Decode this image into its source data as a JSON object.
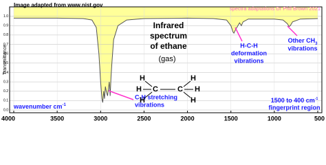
{
  "chart_data": {
    "type": "line",
    "title_lines": [
      "Infrared",
      "spectrum",
      "of ethane"
    ],
    "subtitle": "(gas)",
    "source": "Image adapted from www.nist.gov",
    "credit": "spectra adaptations Dr Phil Brown 2021",
    "y_label": "Transmittance",
    "x_label": {
      "text": "wavenumber  cm",
      "superscript": "-1"
    },
    "fingerprint_note": {
      "line1": "1500 to 400 cm",
      "superscript": "-1",
      "line2": "fingerprint region"
    },
    "annotations": [
      {
        "lines": [
          "C-H stretching",
          "vibrations"
        ],
        "color": "#1a1aff"
      },
      {
        "lines": [
          "H-C-H",
          "deformation",
          "vibrations"
        ],
        "color": "#1a1aff"
      },
      {
        "lines": [
          "Other CH",
          "vibrations"
        ],
        "subscript": "3",
        "color": "#1a1aff"
      }
    ],
    "molecule_atoms": [
      "H",
      "H",
      "H",
      "C",
      "C",
      "H",
      "H",
      "H"
    ],
    "x": [
      4000,
      3800,
      3500,
      3200,
      3100,
      3050,
      3020,
      3000,
      2985,
      2975,
      2965,
      2955,
      2945,
      2935,
      2920,
      2900,
      2890,
      2880,
      2870,
      2850,
      2800,
      2700,
      2500,
      2000,
      1700,
      1550,
      1500,
      1475,
      1465,
      1450,
      1400,
      1380,
      1360,
      1300,
      1000,
      900,
      850,
      830,
      815,
      790,
      700,
      500
    ],
    "series": [
      {
        "name": "ethane",
        "color": "#555555",
        "fill": "#ffff99",
        "values": [
          0.98,
          0.98,
          0.98,
          0.975,
          0.96,
          0.88,
          0.6,
          0.3,
          0.12,
          0.08,
          0.2,
          0.12,
          0.25,
          0.2,
          0.15,
          0.3,
          0.15,
          0.35,
          0.5,
          0.75,
          0.9,
          0.96,
          0.975,
          0.98,
          0.975,
          0.96,
          0.9,
          0.83,
          0.82,
          0.85,
          0.93,
          0.9,
          0.94,
          0.97,
          0.97,
          0.96,
          0.92,
          0.89,
          0.9,
          0.94,
          0.97,
          0.975
        ]
      }
    ],
    "xlim": [
      4000,
      500
    ],
    "ylim": [
      0,
      1.1
    ],
    "xticks": [
      4000,
      3500,
      3000,
      2500,
      2000,
      1500,
      1000,
      500
    ],
    "yticks": [
      {
        "value": 0,
        "label": "0.0"
      },
      0.1,
      0.2,
      0.3,
      0.4,
      0.5,
      0.6,
      0.7,
      0.8,
      0.9,
      {
        "value": 1,
        "label": "1.0"
      }
    ],
    "grid": true
  }
}
